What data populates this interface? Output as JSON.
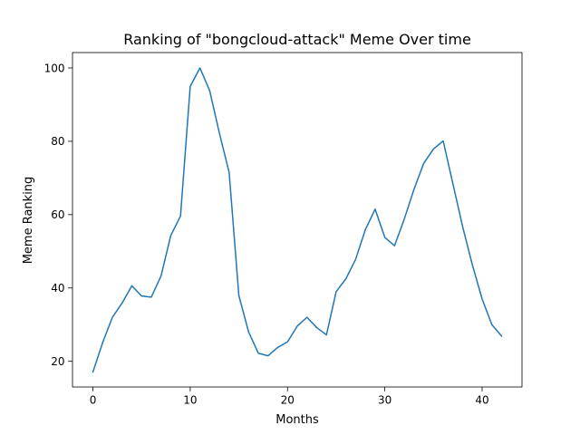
{
  "chart_data": {
    "type": "line",
    "title": "Ranking of \"bongcloud-attack\" Meme Over time",
    "xlabel": "Months",
    "ylabel": "Meme Ranking",
    "xlim": [
      -2.1,
      44.1
    ],
    "ylim": [
      13.0,
      104.2
    ],
    "xticks": [
      0,
      10,
      20,
      30,
      40
    ],
    "yticks": [
      20,
      40,
      60,
      80,
      100
    ],
    "grid": false,
    "legend": "none",
    "series": [
      {
        "color": "#1f77b4",
        "x": [
          0,
          1,
          2,
          3,
          4,
          5,
          6,
          7,
          8,
          9,
          10,
          11,
          12,
          13,
          14,
          15,
          16,
          17,
          18,
          19,
          20,
          21,
          22,
          23,
          24,
          25,
          26,
          27,
          28,
          29,
          30,
          31,
          32,
          33,
          34,
          35,
          36,
          37,
          38,
          39,
          40,
          41,
          42
        ],
        "values": [
          17.1,
          25.1,
          32.0,
          35.9,
          40.6,
          37.8,
          37.5,
          43.3,
          54.3,
          59.6,
          95.0,
          100.0,
          93.8,
          82.2,
          71.5,
          37.9,
          28.0,
          22.2,
          21.5,
          23.8,
          25.3,
          29.6,
          32.0,
          29.2,
          27.2,
          39.0,
          42.5,
          47.8,
          55.9,
          61.5,
          53.8,
          51.5,
          58.8,
          66.9,
          74.0,
          77.9,
          80.1,
          68.4,
          56.7,
          46.3,
          37.0,
          30.0,
          26.9
        ]
      }
    ]
  }
}
